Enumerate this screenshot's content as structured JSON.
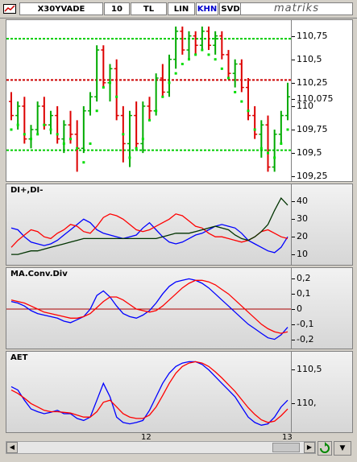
{
  "toolbar": {
    "symbol": "X30YVADE",
    "period": "10",
    "currency": "TL",
    "scale": "LIN",
    "mode_khn": "KHN",
    "mode_svd": "SVD",
    "brand": "matriks"
  },
  "colors": {
    "up_candle": "#00aa00",
    "down_candle": "#dd0000",
    "support_line": "#00cc00",
    "resistance_line": "#cc0000",
    "series_red": "#ff0000",
    "series_blue": "#0000ff",
    "series_dark": "#003300"
  },
  "panels": {
    "price": {
      "ticks": [
        "110,75",
        "110,5",
        "110,25",
        "110,075",
        "110",
        "109,75",
        "109,5",
        "109,25"
      ],
      "last_price": "110,075"
    },
    "dmi": {
      "label": "DI+,DI-",
      "ticks": [
        "40",
        "30",
        "20",
        "10"
      ]
    },
    "macd": {
      "label": "MA.Conv.Div",
      "ticks": [
        "0,2",
        "0,1",
        "0",
        "-0,1",
        "-0,2"
      ]
    },
    "aet": {
      "label": "AET",
      "ticks": [
        "110,5",
        "110,"
      ]
    }
  },
  "time_axis": {
    "labels": [
      "12",
      "13"
    ]
  },
  "chart_data": [
    {
      "type": "line",
      "title": "",
      "xlabel": "",
      "ylabel": "",
      "ylim": [
        109.2,
        110.85
      ],
      "grid": false,
      "candles": [
        [
          110.05,
          110.15,
          109.85,
          109.9
        ],
        [
          109.9,
          110.05,
          109.75,
          110.0
        ],
        [
          110.0,
          110.1,
          109.6,
          109.65
        ],
        [
          109.65,
          109.8,
          109.55,
          109.75
        ],
        [
          109.75,
          110.05,
          109.7,
          110.0
        ],
        [
          110.0,
          110.1,
          109.75,
          109.8
        ],
        [
          109.8,
          109.95,
          109.7,
          109.9
        ],
        [
          109.9,
          110.0,
          109.6,
          109.65
        ],
        [
          109.65,
          109.85,
          109.5,
          109.8
        ],
        [
          109.8,
          109.95,
          109.6,
          109.7
        ],
        [
          109.7,
          109.85,
          109.3,
          109.55
        ],
        [
          109.55,
          110.0,
          109.5,
          109.95
        ],
        [
          109.95,
          110.15,
          109.9,
          110.1
        ],
        [
          110.1,
          110.65,
          110.05,
          110.6
        ],
        [
          110.6,
          110.65,
          110.2,
          110.25
        ],
        [
          110.25,
          110.45,
          110.05,
          110.4
        ],
        [
          110.4,
          110.5,
          109.85,
          109.9
        ],
        [
          109.9,
          110.0,
          109.4,
          109.6
        ],
        [
          109.6,
          109.95,
          109.35,
          109.9
        ],
        [
          109.9,
          110.05,
          109.55,
          109.6
        ],
        [
          109.6,
          110.05,
          109.5,
          110.0
        ],
        [
          110.0,
          110.1,
          109.85,
          109.95
        ],
        [
          109.95,
          110.35,
          109.9,
          110.3
        ],
        [
          110.3,
          110.45,
          110.1,
          110.15
        ],
        [
          110.15,
          110.55,
          110.1,
          110.5
        ],
        [
          110.5,
          110.85,
          110.4,
          110.8
        ],
        [
          110.8,
          110.85,
          110.55,
          110.6
        ],
        [
          110.6,
          110.8,
          110.5,
          110.75
        ],
        [
          110.75,
          110.8,
          110.55,
          110.65
        ],
        [
          110.65,
          110.85,
          110.6,
          110.8
        ],
        [
          110.8,
          110.85,
          110.6,
          110.65
        ],
        [
          110.65,
          110.8,
          110.55,
          110.75
        ],
        [
          110.75,
          110.8,
          110.5,
          110.55
        ],
        [
          110.55,
          110.6,
          110.3,
          110.35
        ],
        [
          110.35,
          110.5,
          110.2,
          110.45
        ],
        [
          110.45,
          110.5,
          110.15,
          110.2
        ],
        [
          110.2,
          110.3,
          109.85,
          109.9
        ],
        [
          109.9,
          110.0,
          109.65,
          109.7
        ],
        [
          109.7,
          109.85,
          109.45,
          109.8
        ],
        [
          109.8,
          109.9,
          109.3,
          109.35
        ],
        [
          109.35,
          109.75,
          109.3,
          109.7
        ],
        [
          109.7,
          109.95,
          109.6,
          109.9
        ],
        [
          109.9,
          110.25,
          109.85,
          110.1
        ]
      ],
      "support": 109.53,
      "resistance": 110.28,
      "upper_band": 110.72,
      "series": [
        {
          "name": "",
          "values": [
            109.75,
            109.8,
            109.7,
            109.65,
            109.7,
            109.8,
            109.75,
            109.7,
            109.6,
            109.65,
            109.55,
            109.4,
            109.6,
            109.95,
            110.2,
            110.25,
            110.1,
            109.7,
            109.45,
            109.55,
            109.65,
            109.85,
            109.95,
            110.1,
            110.25,
            110.35,
            110.45,
            110.5,
            110.55,
            110.6,
            110.55,
            110.5,
            110.4,
            110.3,
            110.15,
            110.05,
            109.95,
            109.75,
            109.55,
            109.5,
            109.45,
            109.6,
            109.75
          ]
        }
      ]
    },
    {
      "type": "line",
      "title": "",
      "xlabel": "",
      "ylabel": "",
      "ylim": [
        5,
        48
      ],
      "grid": false,
      "series": [
        {
          "name": "",
          "values": [
            25,
            24,
            20,
            17,
            16,
            15,
            16,
            18,
            21,
            24,
            27,
            30,
            28,
            24,
            22,
            21,
            20,
            19,
            20,
            21,
            25,
            28,
            24,
            20,
            17,
            16,
            17,
            19,
            21,
            22,
            24,
            26,
            27,
            26,
            25,
            22,
            18,
            16,
            14,
            12,
            11,
            14,
            20
          ]
        },
        {
          "name": "",
          "values": [
            14,
            18,
            21,
            24,
            23,
            20,
            19,
            22,
            24,
            27,
            26,
            23,
            22,
            26,
            31,
            33,
            32,
            30,
            27,
            24,
            23,
            24,
            26,
            28,
            30,
            33,
            32,
            29,
            26,
            25,
            22,
            20,
            20,
            19,
            18,
            17,
            18,
            20,
            23,
            24,
            22,
            20,
            19
          ]
        },
        {
          "name": "",
          "values": [
            10,
            10,
            11,
            12,
            12,
            13,
            14,
            15,
            16,
            17,
            18,
            19,
            19,
            19,
            19,
            19,
            19,
            19,
            19,
            19,
            19,
            19,
            19,
            20,
            21,
            22,
            22,
            22,
            23,
            24,
            25,
            26,
            25,
            24,
            21,
            19,
            18,
            20,
            23,
            27,
            35,
            42,
            38
          ]
        }
      ]
    },
    {
      "type": "line",
      "title": "",
      "xlabel": "",
      "ylabel": "",
      "ylim": [
        -0.25,
        0.25
      ],
      "grid": false,
      "series": [
        {
          "name": "",
          "values": [
            0.05,
            0.04,
            0.02,
            -0.01,
            -0.03,
            -0.04,
            -0.05,
            -0.06,
            -0.08,
            -0.09,
            -0.07,
            -0.05,
            0.0,
            0.09,
            0.12,
            0.08,
            0.02,
            -0.03,
            -0.05,
            -0.06,
            -0.04,
            -0.01,
            0.04,
            0.1,
            0.15,
            0.18,
            0.19,
            0.2,
            0.19,
            0.17,
            0.14,
            0.1,
            0.06,
            0.02,
            -0.02,
            -0.06,
            -0.1,
            -0.13,
            -0.16,
            -0.19,
            -0.2,
            -0.17,
            -0.12
          ]
        },
        {
          "name": "",
          "values": [
            0.06,
            0.05,
            0.04,
            0.02,
            0.0,
            -0.02,
            -0.03,
            -0.04,
            -0.05,
            -0.06,
            -0.06,
            -0.05,
            -0.03,
            0.01,
            0.05,
            0.08,
            0.08,
            0.06,
            0.03,
            0.0,
            -0.01,
            -0.02,
            -0.01,
            0.02,
            0.06,
            0.1,
            0.14,
            0.17,
            0.19,
            0.19,
            0.18,
            0.16,
            0.13,
            0.1,
            0.06,
            0.02,
            -0.02,
            -0.06,
            -0.1,
            -0.13,
            -0.15,
            -0.16,
            -0.15
          ]
        }
      ],
      "reference": 0
    },
    {
      "type": "line",
      "title": "",
      "xlabel": "",
      "ylabel": "",
      "ylim": [
        109.6,
        110.72
      ],
      "grid": false,
      "series": [
        {
          "name": "",
          "values": [
            110.25,
            110.2,
            110.05,
            109.92,
            109.88,
            109.85,
            109.87,
            109.9,
            109.85,
            109.85,
            109.78,
            109.75,
            109.8,
            110.05,
            110.3,
            110.1,
            109.8,
            109.72,
            109.7,
            109.72,
            109.75,
            109.9,
            110.1,
            110.3,
            110.45,
            110.55,
            110.6,
            110.62,
            110.62,
            110.58,
            110.5,
            110.4,
            110.3,
            110.2,
            110.1,
            109.95,
            109.8,
            109.72,
            109.68,
            109.7,
            109.8,
            109.95,
            110.05
          ]
        },
        {
          "name": "",
          "values": [
            110.2,
            110.15,
            110.08,
            110.0,
            109.95,
            109.9,
            109.88,
            109.88,
            109.87,
            109.86,
            109.83,
            109.8,
            109.8,
            109.88,
            110.02,
            110.05,
            109.95,
            109.85,
            109.8,
            109.78,
            109.78,
            109.83,
            109.95,
            110.12,
            110.3,
            110.45,
            110.55,
            110.6,
            110.62,
            110.6,
            110.55,
            110.47,
            110.38,
            110.28,
            110.18,
            110.06,
            109.94,
            109.84,
            109.76,
            109.72,
            109.74,
            109.82,
            109.92
          ]
        }
      ]
    }
  ]
}
